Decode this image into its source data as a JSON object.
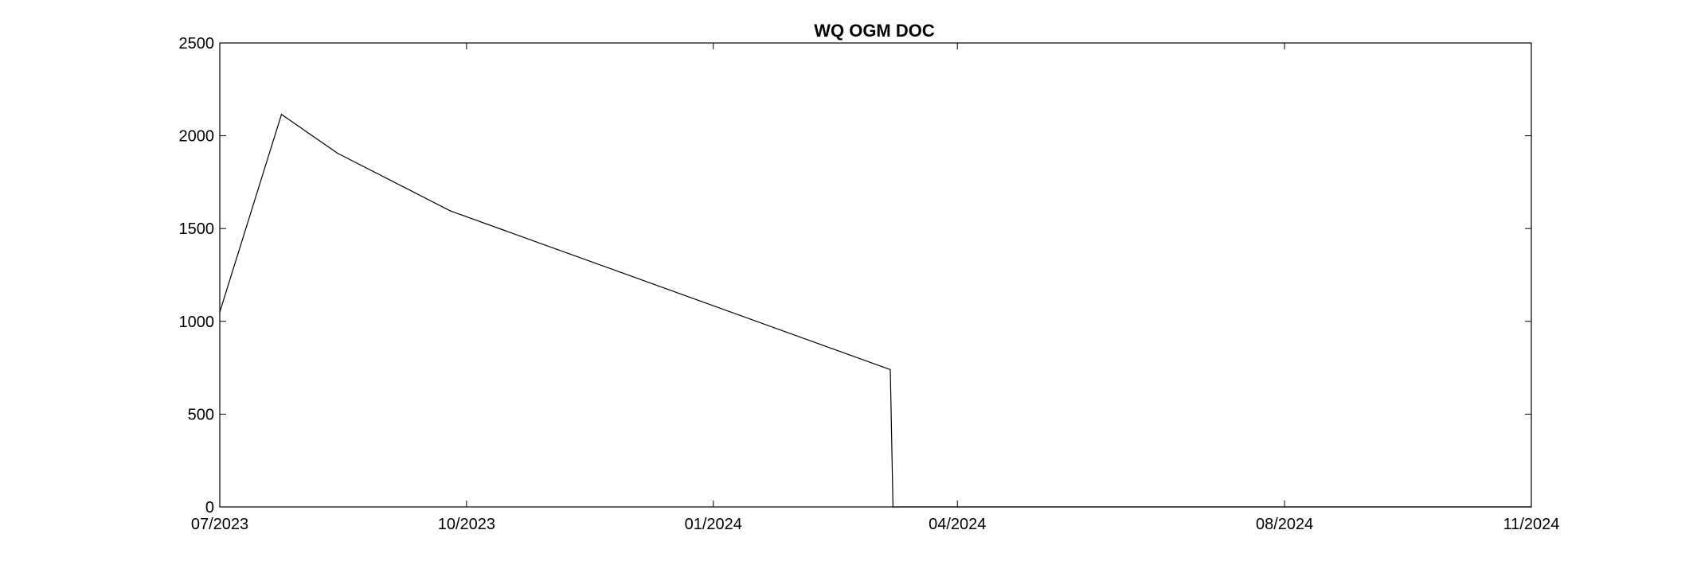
{
  "chart_data": {
    "type": "line",
    "title": "WQ OGM DOC",
    "xlabel": "",
    "ylabel": "",
    "x_scale": "date",
    "xlim": [
      "2023-07-01",
      "2024-11-01"
    ],
    "ylim": [
      0,
      2500
    ],
    "grid": false,
    "legend": "none",
    "x_ticks": [
      {
        "date": "2023-07-01",
        "label": "07/2023"
      },
      {
        "date": "2023-10-01",
        "label": "10/2023"
      },
      {
        "date": "2024-01-01",
        "label": "01/2024"
      },
      {
        "date": "2024-04-01",
        "label": "04/2024"
      },
      {
        "date": "2024-08-01",
        "label": "08/2024"
      },
      {
        "date": "2024-11-01",
        "label": "11/2024"
      }
    ],
    "y_ticks": [
      0,
      500,
      1000,
      1500,
      2000,
      2500
    ],
    "series": [
      {
        "color": "#000000",
        "x": [
          "2023-07-01",
          "2023-07-24",
          "2023-08-14",
          "2023-09-25",
          "2024-03-07",
          "2024-03-08",
          "2024-11-01"
        ],
        "y": [
          1050,
          2115,
          1905,
          1595,
          740,
          0,
          0
        ]
      }
    ]
  }
}
